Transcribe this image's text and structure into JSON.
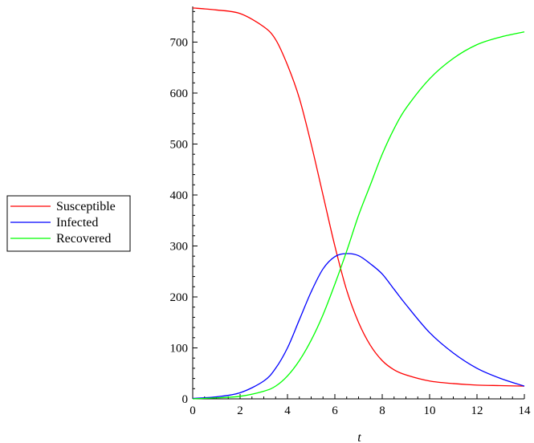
{
  "chart_data": {
    "type": "line",
    "title": "",
    "xlabel": "t",
    "ylabel": "",
    "xlim": [
      0,
      14
    ],
    "ylim": [
      0,
      770
    ],
    "x_ticks": [
      "0",
      "2",
      "4",
      "6",
      "8",
      "10",
      "12",
      "14"
    ],
    "y_ticks": [
      "0",
      "100",
      "200",
      "300",
      "400",
      "500",
      "600",
      "700"
    ],
    "grid": false,
    "legend_position": "left",
    "x": [
      0,
      1,
      2,
      3,
      3.5,
      4,
      4.5,
      5,
      5.5,
      6,
      6.5,
      7,
      7.5,
      8,
      8.5,
      9,
      10,
      11,
      12,
      13,
      14
    ],
    "series": [
      {
        "name": "Susceptible",
        "color": "#ff0000",
        "values": [
          767,
          763,
          756,
          730,
          705,
          655,
          590,
          500,
          400,
          300,
          213,
          150,
          105,
          75,
          57,
          47,
          35,
          30,
          27,
          26,
          25
        ]
      },
      {
        "name": "Infected",
        "color": "#0000ff",
        "values": [
          1,
          4,
          12,
          35,
          60,
          100,
          155,
          210,
          255,
          279,
          285,
          281,
          265,
          245,
          215,
          185,
          130,
          90,
          60,
          40,
          25
        ]
      },
      {
        "name": "Recovered",
        "color": "#00ff00",
        "values": [
          0,
          2,
          5,
          15,
          25,
          45,
          75,
          115,
          165,
          225,
          290,
          360,
          420,
          480,
          530,
          570,
          628,
          668,
          695,
          710,
          720
        ]
      }
    ]
  }
}
